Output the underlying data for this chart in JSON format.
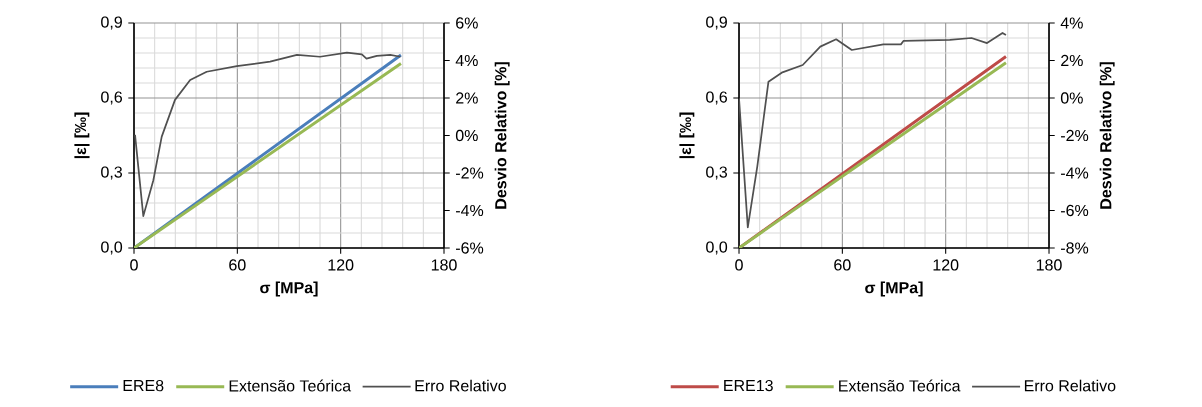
{
  "chart_data": [
    {
      "type": "line",
      "xlabel": "σ  [MPa]",
      "ylabel": "|ε| [‰]",
      "y2label": "Desvio Relativo [%]",
      "xlim": [
        0,
        180
      ],
      "xticks": [
        0,
        60,
        120,
        180
      ],
      "ylim": [
        0,
        0.9
      ],
      "yticks": [
        {
          "value": 0,
          "label": "0,0"
        },
        {
          "value": 0.3,
          "label": "0,3"
        },
        {
          "value": 0.6,
          "label": "0,6"
        },
        {
          "value": 0.9,
          "label": "0,9"
        }
      ],
      "y2lim": [
        -6,
        6
      ],
      "y2ticks": [
        {
          "value": -6,
          "label": "-6%"
        },
        {
          "value": -4,
          "label": "-4%"
        },
        {
          "value": -2,
          "label": "-2%"
        },
        {
          "value": 0,
          "label": "0%"
        },
        {
          "value": 2,
          "label": "2%"
        },
        {
          "value": 4,
          "label": "4%"
        },
        {
          "value": 6,
          "label": "6%"
        }
      ],
      "grid": true,
      "legend": "bottom",
      "series": [
        {
          "name": "ERE8",
          "color": "#4a7ebb",
          "x": [
            0,
            143,
            155
          ],
          "values": [
            0,
            0.712,
            0.772
          ]
        },
        {
          "name": "Extensão Teórica",
          "color": "#98b954",
          "x": [
            0,
            143,
            155
          ],
          "values": [
            0,
            0.681,
            0.738
          ]
        },
        {
          "name": "Erro Relativo",
          "color": "#505050",
          "axis": "y2",
          "x": [
            0.6,
            5.4,
            11.2,
            16.1,
            23.8,
            32.6,
            42.2,
            59.7,
            79,
            94.6,
            108,
            123.6,
            132.3,
            135,
            141,
            148.8,
            154.7
          ],
          "values": [
            0.03,
            -4.3,
            -2.4,
            -0.06,
            1.9,
            2.96,
            3.4,
            3.7,
            3.94,
            4.3,
            4.2,
            4.42,
            4.33,
            4.1,
            4.25,
            4.3,
            4.2
          ]
        }
      ]
    },
    {
      "type": "line",
      "xlabel": "σ  [MPa]",
      "ylabel": "|ε| [‰]",
      "y2label": "Desvio Relativo [%]",
      "xlim": [
        0,
        180
      ],
      "xticks": [
        0,
        60,
        120,
        180
      ],
      "ylim": [
        0,
        0.9
      ],
      "yticks": [
        {
          "value": 0,
          "label": "0,0"
        },
        {
          "value": 0.3,
          "label": "0,3"
        },
        {
          "value": 0.6,
          "label": "0,6"
        },
        {
          "value": 0.9,
          "label": "0,9"
        }
      ],
      "y2lim": [
        -8,
        4
      ],
      "y2ticks": [
        {
          "value": -8,
          "label": "-8%"
        },
        {
          "value": -6,
          "label": "-6%"
        },
        {
          "value": -4,
          "label": "-4%"
        },
        {
          "value": -2,
          "label": "-2%"
        },
        {
          "value": 0,
          "label": "0%"
        },
        {
          "value": 2,
          "label": "2%"
        },
        {
          "value": 4,
          "label": "4%"
        }
      ],
      "grid": true,
      "legend": "bottom",
      "series": [
        {
          "name": "ERE13",
          "color": "#be4b48",
          "x": [
            0,
            122.4,
            155
          ],
          "values": [
            0,
            0.605,
            0.766
          ]
        },
        {
          "name": "Extensão Teórica",
          "color": "#98b954",
          "x": [
            0,
            122.4,
            155
          ],
          "values": [
            0,
            0.585,
            0.741
          ]
        },
        {
          "name": "Erro Relativo",
          "color": "#505050",
          "axis": "y2",
          "x": [
            0,
            5.1,
            10.6,
            17.1,
            24.8,
            37,
            47.2,
            56.4,
            65.5,
            83.8,
            94,
            95.6,
            122.4,
            135,
            144,
            153,
            155
          ],
          "values": [
            -0.02,
            -6.9,
            -3.66,
            0.87,
            1.35,
            1.76,
            2.74,
            3.13,
            2.56,
            2.86,
            2.86,
            3.05,
            3.1,
            3.2,
            2.93,
            3.47,
            3.36
          ]
        }
      ]
    }
  ]
}
